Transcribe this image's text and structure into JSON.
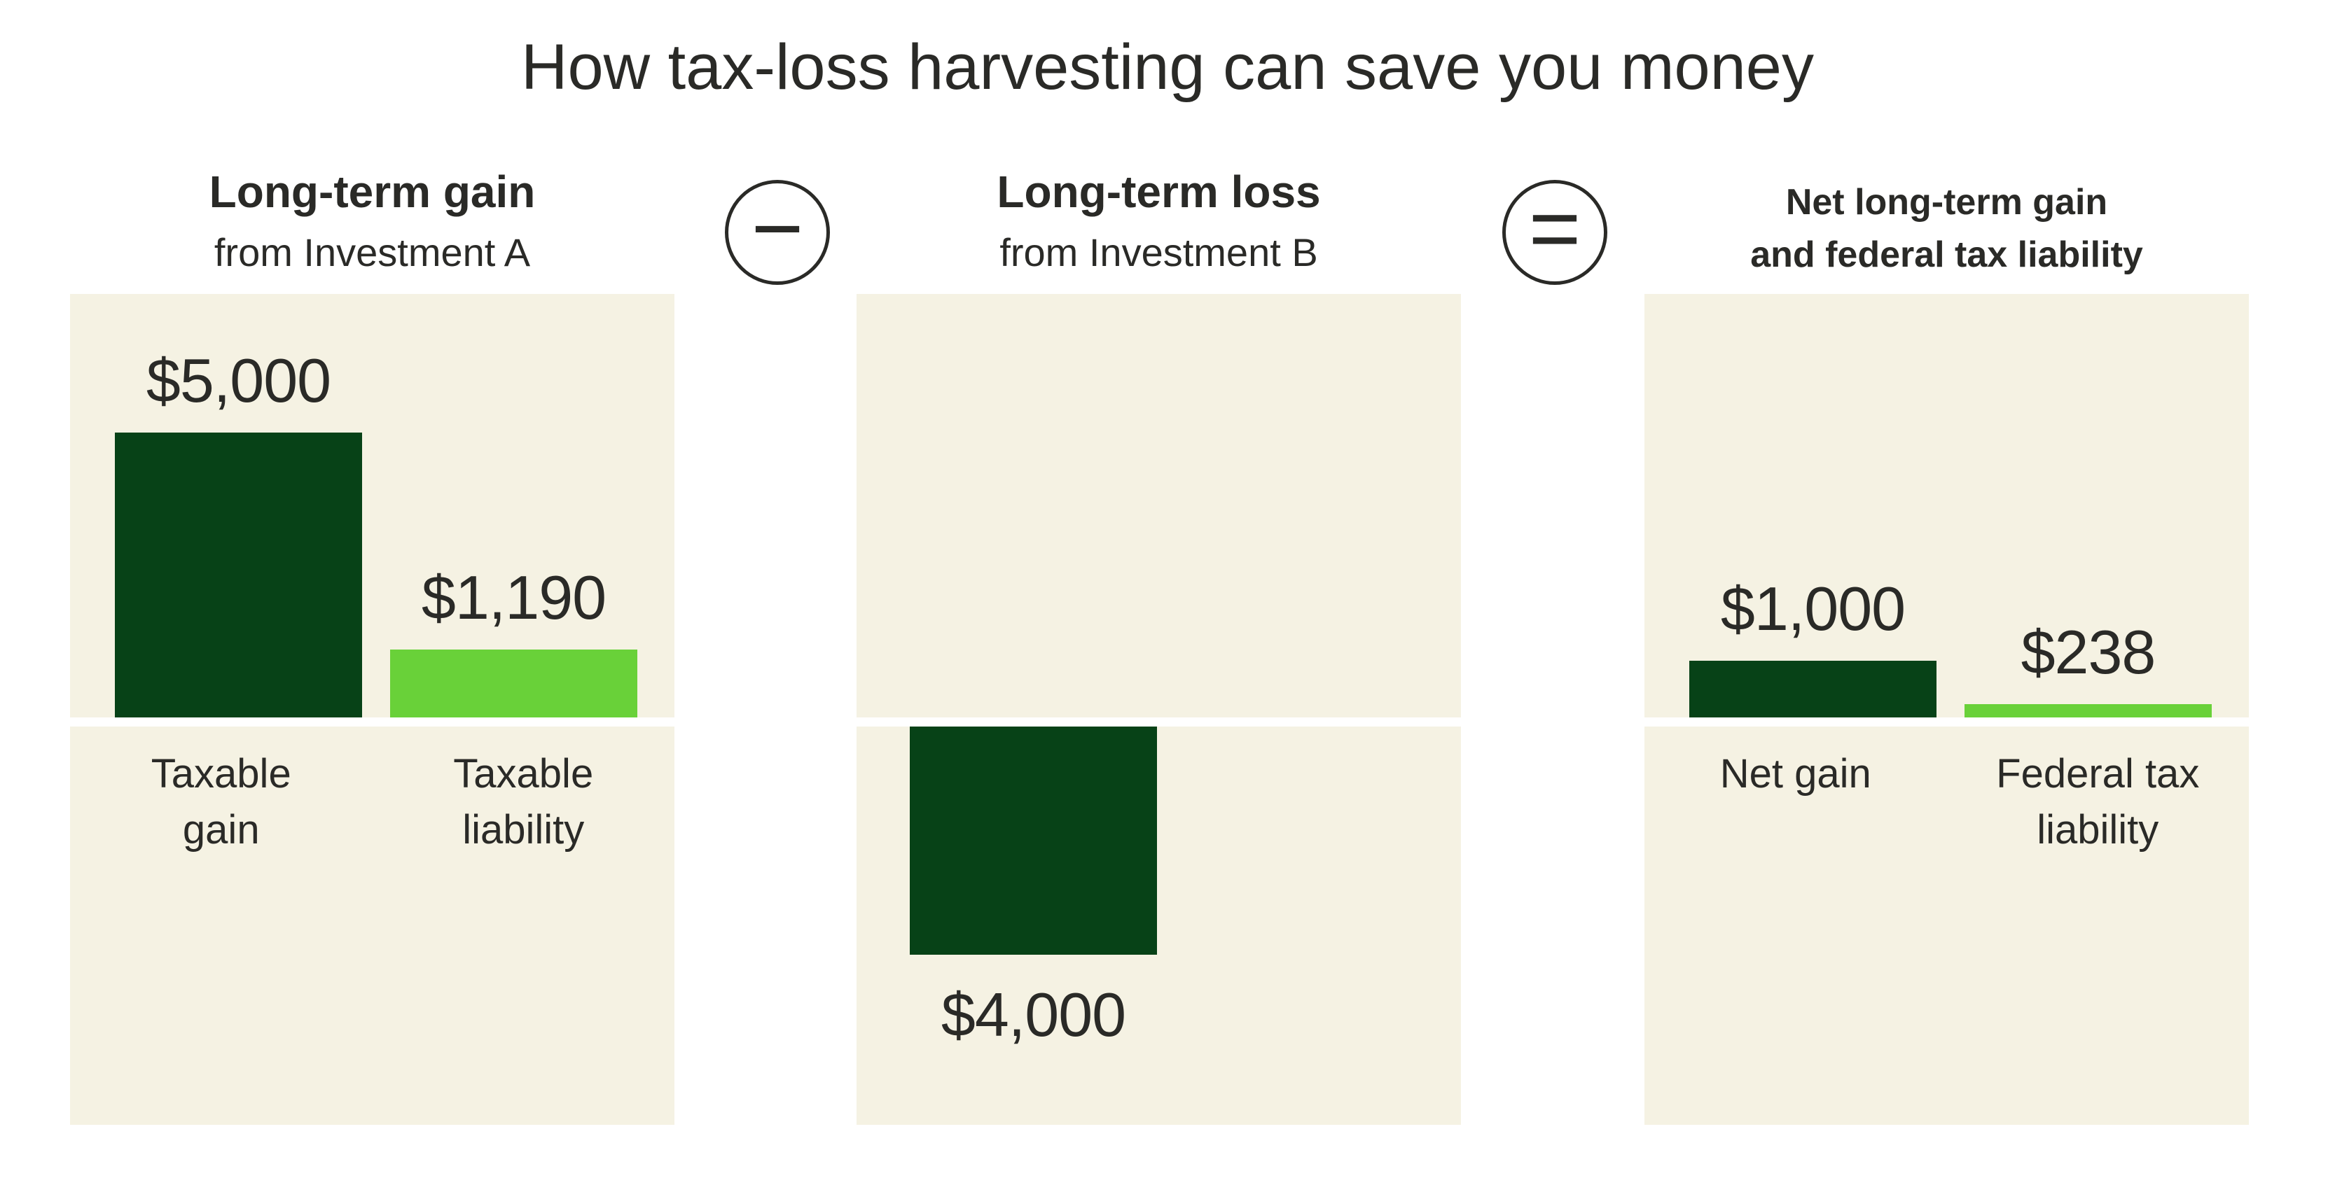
{
  "title": "How tax-loss harvesting can save you money",
  "operators": [
    {
      "name": "minus",
      "symbol": "−"
    },
    {
      "name": "equals",
      "symbol": "="
    }
  ],
  "colors": {
    "background": "#ffffff",
    "panel_background": "#f5f2e3",
    "dark_green": "#074217",
    "light_green": "#69d139",
    "text": "#2a2a27"
  },
  "chart_data": [
    {
      "type": "bar",
      "panel": "left",
      "title": "Long-term gain",
      "subtitle": "from Investment A",
      "categories": [
        "Taxable\ngain",
        "Taxable\nliability"
      ],
      "values": [
        5000,
        1190
      ],
      "value_labels": [
        "$5,000",
        "$1,190"
      ],
      "bar_colors": [
        "#074217",
        "#69d139"
      ],
      "unit": "USD",
      "baseline": 0
    },
    {
      "type": "bar",
      "panel": "middle",
      "title": "Long-term loss",
      "subtitle": "from Investment B",
      "categories": [],
      "values": [
        -4000
      ],
      "value_labels": [
        "$4,000"
      ],
      "bar_colors": [
        "#074217"
      ],
      "unit": "USD",
      "baseline": 0
    },
    {
      "type": "bar",
      "panel": "right",
      "title": "Net long-term gain\nand federal tax liability",
      "subtitle": "",
      "categories": [
        "Net gain",
        "Federal tax\nliability"
      ],
      "values": [
        1000,
        238
      ],
      "value_labels": [
        "$1,000",
        "$238"
      ],
      "bar_colors": [
        "#074217",
        "#69d139"
      ],
      "unit": "USD",
      "baseline": 0
    }
  ]
}
